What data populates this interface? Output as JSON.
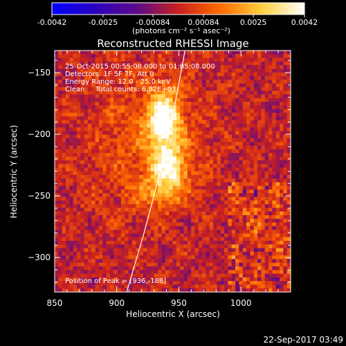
{
  "colorbar": {
    "tick_labels": [
      "-0.0042",
      "-0.0025",
      "-0.00084",
      "0.00084",
      "0.0025",
      "0.0042"
    ],
    "tick_values": [
      -0.0042,
      -0.0025,
      -0.00084,
      0.00084,
      0.0025,
      0.0042
    ],
    "range": [
      -0.0042,
      0.0042
    ],
    "units_label": "(photons cm⁻² s⁻¹ asec⁻²)",
    "colors": [
      "#0000ff",
      "#2a00c0",
      "#5a0a8a",
      "#c82020",
      "#ff6a00",
      "#ffd040",
      "#ffffff"
    ]
  },
  "annotations": {
    "time_range": "25-Oct-2015 00:55:08.000 to 01:05:08.000",
    "detectors": "Detectors: 1F 5F 7F, Att 0",
    "energy_range": "Energy Range: 12.0 - 25.0 keV",
    "clean_counts": "Clean     Total counts: 6.82E+03",
    "peak_position": "Position of Peak = [936,-188]"
  },
  "footer": {
    "timestamp": "22-Sep-2017 03:49"
  },
  "chart_data": {
    "type": "heatmap",
    "title": "Reconstructed RHESSI Image",
    "xlabel": "Heliocentric X (arcsec)",
    "ylabel": "Heliocentric Y (arcsec)",
    "xlim": [
      850,
      1040
    ],
    "ylim": [
      -328,
      -132
    ],
    "xticks": [
      850,
      900,
      950,
      1000
    ],
    "yticks": [
      -150,
      -200,
      -250,
      -300
    ],
    "xtick_labels": [
      "850",
      "900",
      "950",
      "1000"
    ],
    "ytick_labels": [
      "−150",
      "−200",
      "−250",
      "−300"
    ],
    "sources": [
      {
        "x": 938,
        "y": -188,
        "peak": 0.0042,
        "sx": 9,
        "sy": 16
      },
      {
        "x": 942,
        "y": -228,
        "peak": 0.0034,
        "sx": 10,
        "sy": 13
      },
      {
        "x": 932,
        "y": -248,
        "peak": 0.0012,
        "sx": 14,
        "sy": 8
      }
    ],
    "limb_curve": [
      [
        908,
        -328
      ],
      [
        922,
        -280
      ],
      [
        935,
        -230
      ],
      [
        946,
        -180
      ],
      [
        955,
        -132
      ]
    ],
    "peak": {
      "x": 936,
      "y": -188
    },
    "grid": false
  }
}
